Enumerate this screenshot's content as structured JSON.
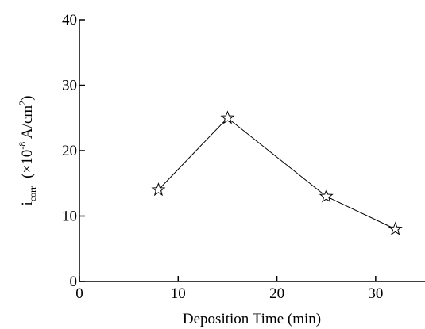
{
  "chart_data": {
    "type": "line",
    "xlabel": "Deposition Time (min)",
    "ylabel": [
      "i",
      "corr",
      "(×10",
      "-8",
      " A/cm",
      "2",
      ")"
    ],
    "x": [
      8,
      15,
      25,
      32
    ],
    "series": [
      {
        "values": [
          14,
          25,
          13,
          8
        ],
        "color": "#000000"
      }
    ],
    "xlim": [
      0,
      35
    ],
    "xticks": [
      0,
      10,
      20,
      30
    ],
    "ylim": [
      0,
      40
    ],
    "yticks": [
      0,
      10,
      20,
      30,
      40
    ],
    "marker": "star"
  }
}
